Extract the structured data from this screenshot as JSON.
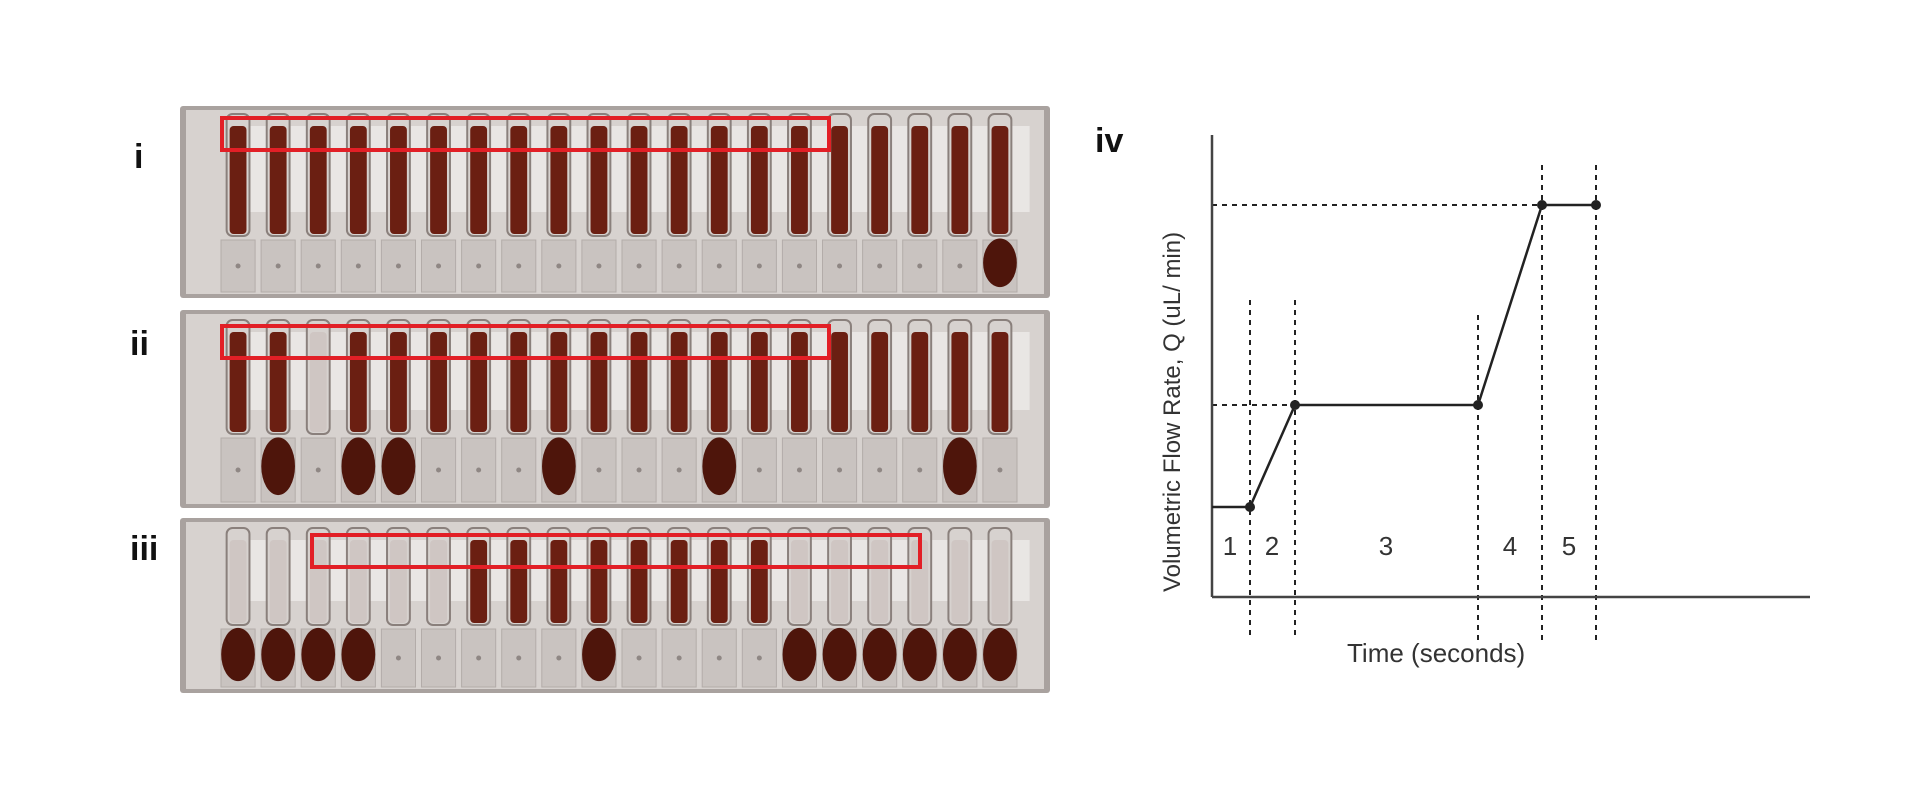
{
  "panels": {
    "i": "i",
    "ii": "ii",
    "iii": "iii",
    "iv": "iv"
  },
  "colors": {
    "blood": "#6b1f12",
    "blood_dark": "#4e150b",
    "chip": "#e9e6e4",
    "chip_shadow": "#b8b1ae",
    "highlight": "#e21f26",
    "line": "#222222"
  },
  "photo_i": {
    "channels": 20,
    "filled": [
      true,
      true,
      true,
      true,
      true,
      true,
      true,
      true,
      true,
      true,
      true,
      true,
      true,
      true,
      true,
      true,
      true,
      true,
      true,
      true
    ],
    "droplet": [
      false,
      false,
      false,
      false,
      false,
      false,
      false,
      false,
      false,
      false,
      false,
      false,
      false,
      false,
      false,
      false,
      false,
      false,
      false,
      true
    ]
  },
  "photo_ii": {
    "channels": 20,
    "filled": [
      true,
      true,
      false,
      true,
      true,
      true,
      true,
      true,
      true,
      true,
      true,
      true,
      true,
      true,
      true,
      true,
      true,
      true,
      true,
      true
    ],
    "droplet": [
      false,
      true,
      false,
      true,
      true,
      false,
      false,
      false,
      true,
      false,
      false,
      false,
      true,
      false,
      false,
      false,
      false,
      false,
      true,
      false
    ]
  },
  "photo_iii": {
    "channels": 20,
    "filled": [
      false,
      false,
      false,
      false,
      false,
      false,
      true,
      true,
      true,
      true,
      true,
      true,
      true,
      true,
      false,
      false,
      false,
      false,
      false,
      false
    ],
    "droplet": [
      true,
      true,
      true,
      true,
      false,
      false,
      false,
      false,
      false,
      true,
      false,
      false,
      false,
      false,
      true,
      true,
      true,
      true,
      true,
      true
    ]
  },
  "chart_data": {
    "type": "line",
    "title": "",
    "xlabel": "Time (seconds)",
    "ylabel": "Volumetric Flow Rate, Q (uL/ min)",
    "x": [
      0,
      1,
      2,
      6,
      7,
      8
    ],
    "y": [
      0,
      0,
      1,
      1,
      2,
      2
    ],
    "regions": [
      "1",
      "2",
      "3",
      "4",
      "5"
    ],
    "region_centers": [
      0.5,
      1.5,
      4,
      6.5,
      7.5
    ],
    "grid": false
  }
}
